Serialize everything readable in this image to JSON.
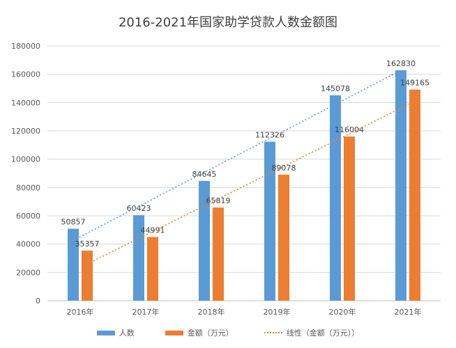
{
  "chart_data": {
    "type": "bar",
    "title": "2016-2021年国家助学贷款人数金额图",
    "categories": [
      "2016年",
      "2017年",
      "2018年",
      "2019年",
      "2020年",
      "2021年"
    ],
    "series": [
      {
        "name": "人数",
        "color": "#5B9BD5",
        "values": [
          50857,
          60423,
          84645,
          112326,
          145078,
          162830
        ]
      },
      {
        "name": "金额（万元）",
        "color": "#ED7D31",
        "values": [
          35357,
          44991,
          65819,
          89078,
          116004,
          149165
        ]
      }
    ],
    "trendlines": [
      {
        "name": "",
        "of": "人数",
        "type": "linear",
        "color": "#5B9BD5",
        "show_in_legend": false
      },
      {
        "name": "线性（金额（万元））",
        "of": "金额（万元）",
        "type": "linear",
        "color": "#ED7D31",
        "show_in_legend": true
      }
    ],
    "ylim": [
      0,
      180000
    ],
    "yticks": [
      0,
      20000,
      40000,
      60000,
      80000,
      100000,
      120000,
      140000,
      160000,
      180000
    ],
    "grid": true,
    "legend_position": "bottom",
    "xlabel": "",
    "ylabel": ""
  }
}
